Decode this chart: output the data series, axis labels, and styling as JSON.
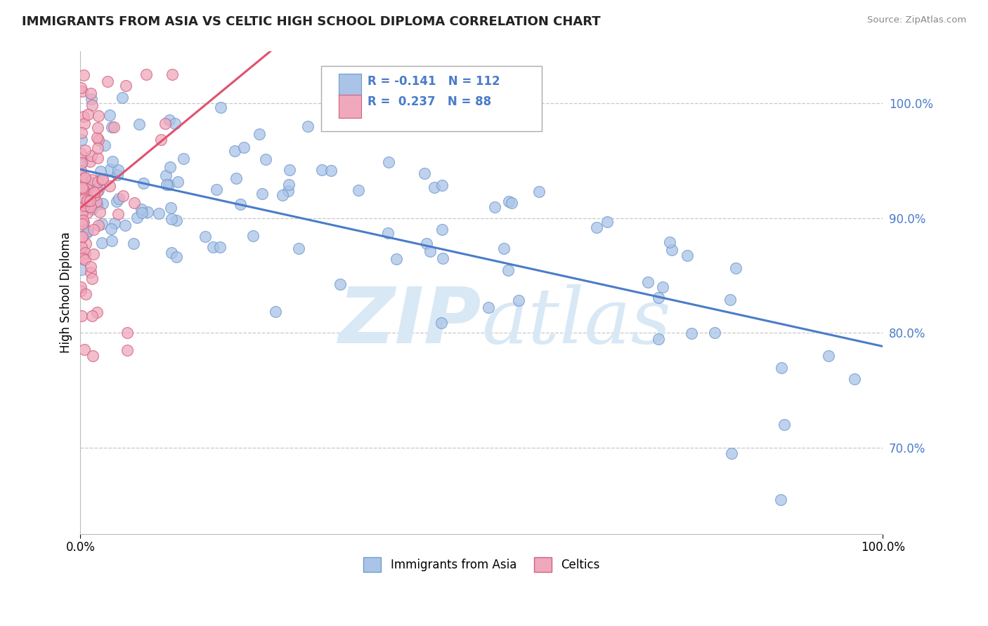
{
  "title": "IMMIGRANTS FROM ASIA VS CELTIC HIGH SCHOOL DIPLOMA CORRELATION CHART",
  "source": "Source: ZipAtlas.com",
  "ylabel": "High School Diploma",
  "xlim": [
    0.0,
    1.0
  ],
  "ylim": [
    0.625,
    1.045
  ],
  "grid_yticks": [
    0.7,
    0.8,
    0.9,
    1.0
  ],
  "blue_color": "#aac4e8",
  "pink_color": "#f0a8bc",
  "blue_edge": "#7099cc",
  "pink_edge": "#d06080",
  "trendline_blue": "#4a7cc9",
  "trendline_pink": "#e05070",
  "legend_R_blue": "-0.141",
  "legend_N_blue": "112",
  "legend_R_pink": "0.237",
  "legend_N_pink": "88",
  "tick_color": "#4a7cc9",
  "watermark_color": "#d8e8f5",
  "blue_seed": 12,
  "pink_seed": 34
}
